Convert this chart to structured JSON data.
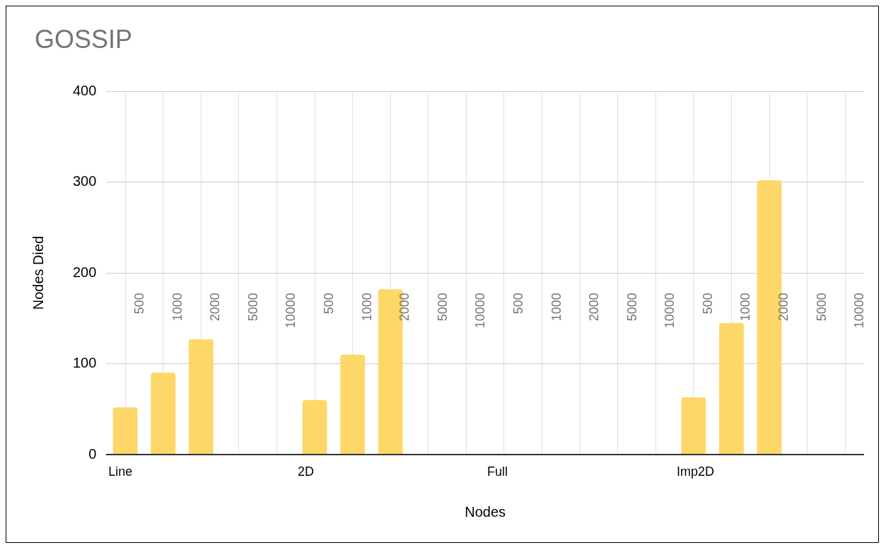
{
  "chart_data": {
    "type": "bar",
    "title": "GOSSIP",
    "xlabel": "Nodes",
    "ylabel": "Nodes Died",
    "categories": [
      "500",
      "1000",
      "2000",
      "5000",
      "10000",
      "500",
      "1000",
      "2000",
      "5000",
      "10000",
      "500",
      "1000",
      "2000",
      "5000",
      "10000",
      "500",
      "1000",
      "2000",
      "5000",
      "10000"
    ],
    "values": [
      52,
      90,
      127,
      0,
      0,
      60,
      110,
      182,
      0,
      0,
      0,
      0,
      0,
      0,
      0,
      63,
      145,
      302,
      0,
      0
    ],
    "color": "#fdd868",
    "annotations": [
      "Line",
      "2D",
      "Full",
      "Imp2D"
    ],
    "ylim": [
      0,
      400
    ],
    "yticks": [
      0,
      100,
      200,
      300,
      400
    ],
    "grid": true,
    "legend": false
  }
}
